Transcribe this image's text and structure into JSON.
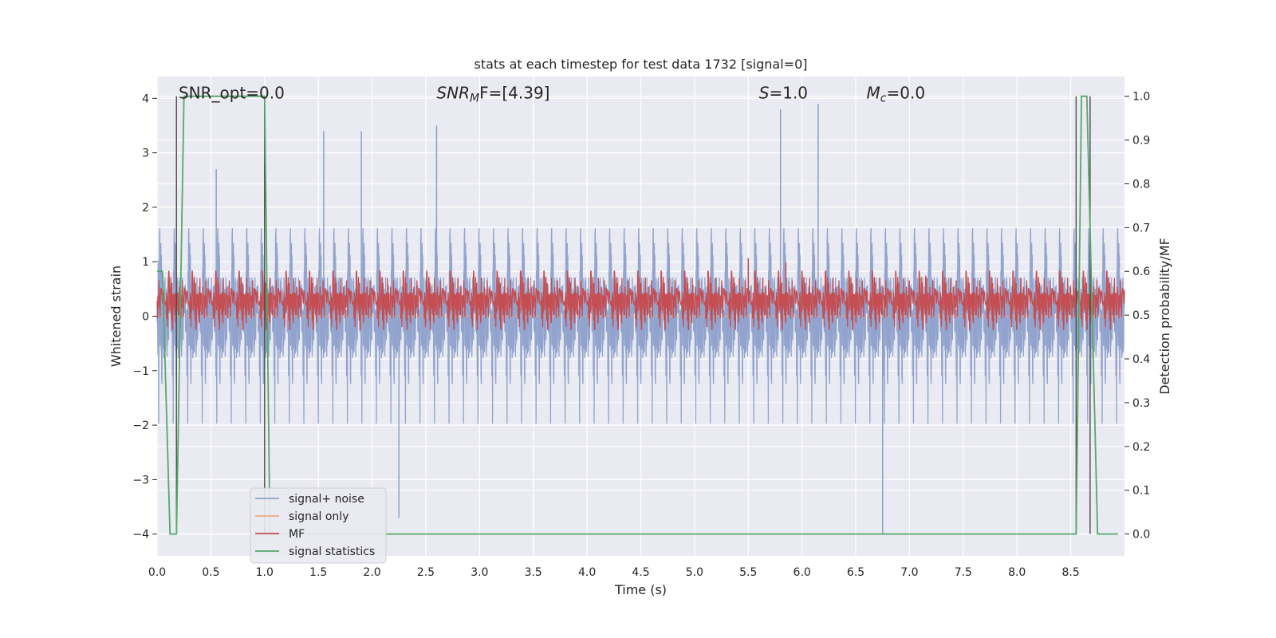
{
  "chart_data": {
    "type": "line",
    "title": "stats at each timestep for test data 1732 [signal=0]",
    "xlabel": "Time (s)",
    "ylabel": "Whitened strain",
    "ylabel_right": "Detection probability/MF",
    "xlim": [
      0.0,
      9.0
    ],
    "ylim": [
      -4.4,
      4.4
    ],
    "ylim_right": [
      -0.05,
      1.045
    ],
    "x_ticks": [
      "0.0",
      "0.5",
      "1.0",
      "1.5",
      "2.0",
      "2.5",
      "3.0",
      "3.5",
      "4.0",
      "4.5",
      "5.0",
      "5.5",
      "6.0",
      "6.5",
      "7.0",
      "7.5",
      "8.0",
      "8.5"
    ],
    "x_tick_values": [
      0.0,
      0.5,
      1.0,
      1.5,
      2.0,
      2.5,
      3.0,
      3.5,
      4.0,
      4.5,
      5.0,
      5.5,
      6.0,
      6.5,
      7.0,
      7.5,
      8.0,
      8.5
    ],
    "y_ticks": [
      "4",
      "3",
      "2",
      "1",
      "0",
      "−1",
      "−2",
      "−3",
      "−4"
    ],
    "y_tick_values": [
      4,
      3,
      2,
      1,
      0,
      -1,
      -2,
      -3,
      -4
    ],
    "y_right_ticks": [
      "1.0",
      "0.9",
      "0.8",
      "0.7",
      "0.6",
      "0.5",
      "0.4",
      "0.3",
      "0.2",
      "0.1",
      "0.0"
    ],
    "y_right_tick_values": [
      1.0,
      0.9,
      0.8,
      0.7,
      0.6,
      0.5,
      0.4,
      0.3,
      0.2,
      0.1,
      0.0
    ],
    "grid": true,
    "legend_position": "lower-left",
    "annotations": [
      {
        "id": "snr-opt",
        "prefix": "SNR_opt=",
        "value": "0.0",
        "x": 0.2
      },
      {
        "id": "snr-mf",
        "prefix": "SNR",
        "sub": "M",
        "suffix": "F=",
        "value": "[4.39]",
        "x": 2.6
      },
      {
        "id": "s-stat",
        "prefix": "S",
        "suffix": "=",
        "value": "1.0",
        "x": 5.6
      },
      {
        "id": "mc",
        "prefix": "M",
        "sub": "c",
        "suffix": "=",
        "value": "0.0",
        "x": 6.6
      }
    ],
    "series": [
      {
        "name": "signal+ noise",
        "color": "#8da0cb",
        "kind": "noise",
        "amplitude_p99": [
          -3.0,
          3.0
        ],
        "peaks": [
          [
            0.55,
            2.7
          ],
          [
            1.0,
            2.8
          ],
          [
            1.55,
            3.4
          ],
          [
            1.9,
            3.4
          ],
          [
            2.6,
            3.5
          ],
          [
            5.8,
            3.8
          ],
          [
            6.15,
            3.9
          ],
          [
            6.75,
            -4.0
          ],
          [
            2.25,
            -3.7
          ]
        ]
      },
      {
        "name": "signal only",
        "color": "#f4a582",
        "kind": "flat",
        "values": []
      },
      {
        "name": "MF",
        "color": "#c44e52",
        "kind": "mf",
        "right_axis": true,
        "baseline": 0.53,
        "spread": 0.07,
        "peaks": [
          [
            5.5,
            0.63
          ],
          [
            5.85,
            0.62
          ],
          [
            7.15,
            0.59
          ]
        ]
      },
      {
        "name": "signal statistics",
        "color": "#55a868",
        "kind": "steps",
        "right_axis": true,
        "x": [
          0.0,
          0.05,
          0.12,
          0.18,
          0.25,
          1.0,
          1.05,
          1.1,
          8.55,
          8.6,
          8.65,
          8.75,
          8.85,
          9.0
        ],
        "values": [
          0.6,
          0.6,
          0.0,
          0.0,
          1.0,
          1.0,
          0.0,
          0.0,
          0.0,
          1.0,
          1.0,
          0.0,
          0.0,
          0.0
        ]
      }
    ],
    "vertical_markers": [
      0.18,
      1.0,
      8.55,
      8.68
    ]
  }
}
